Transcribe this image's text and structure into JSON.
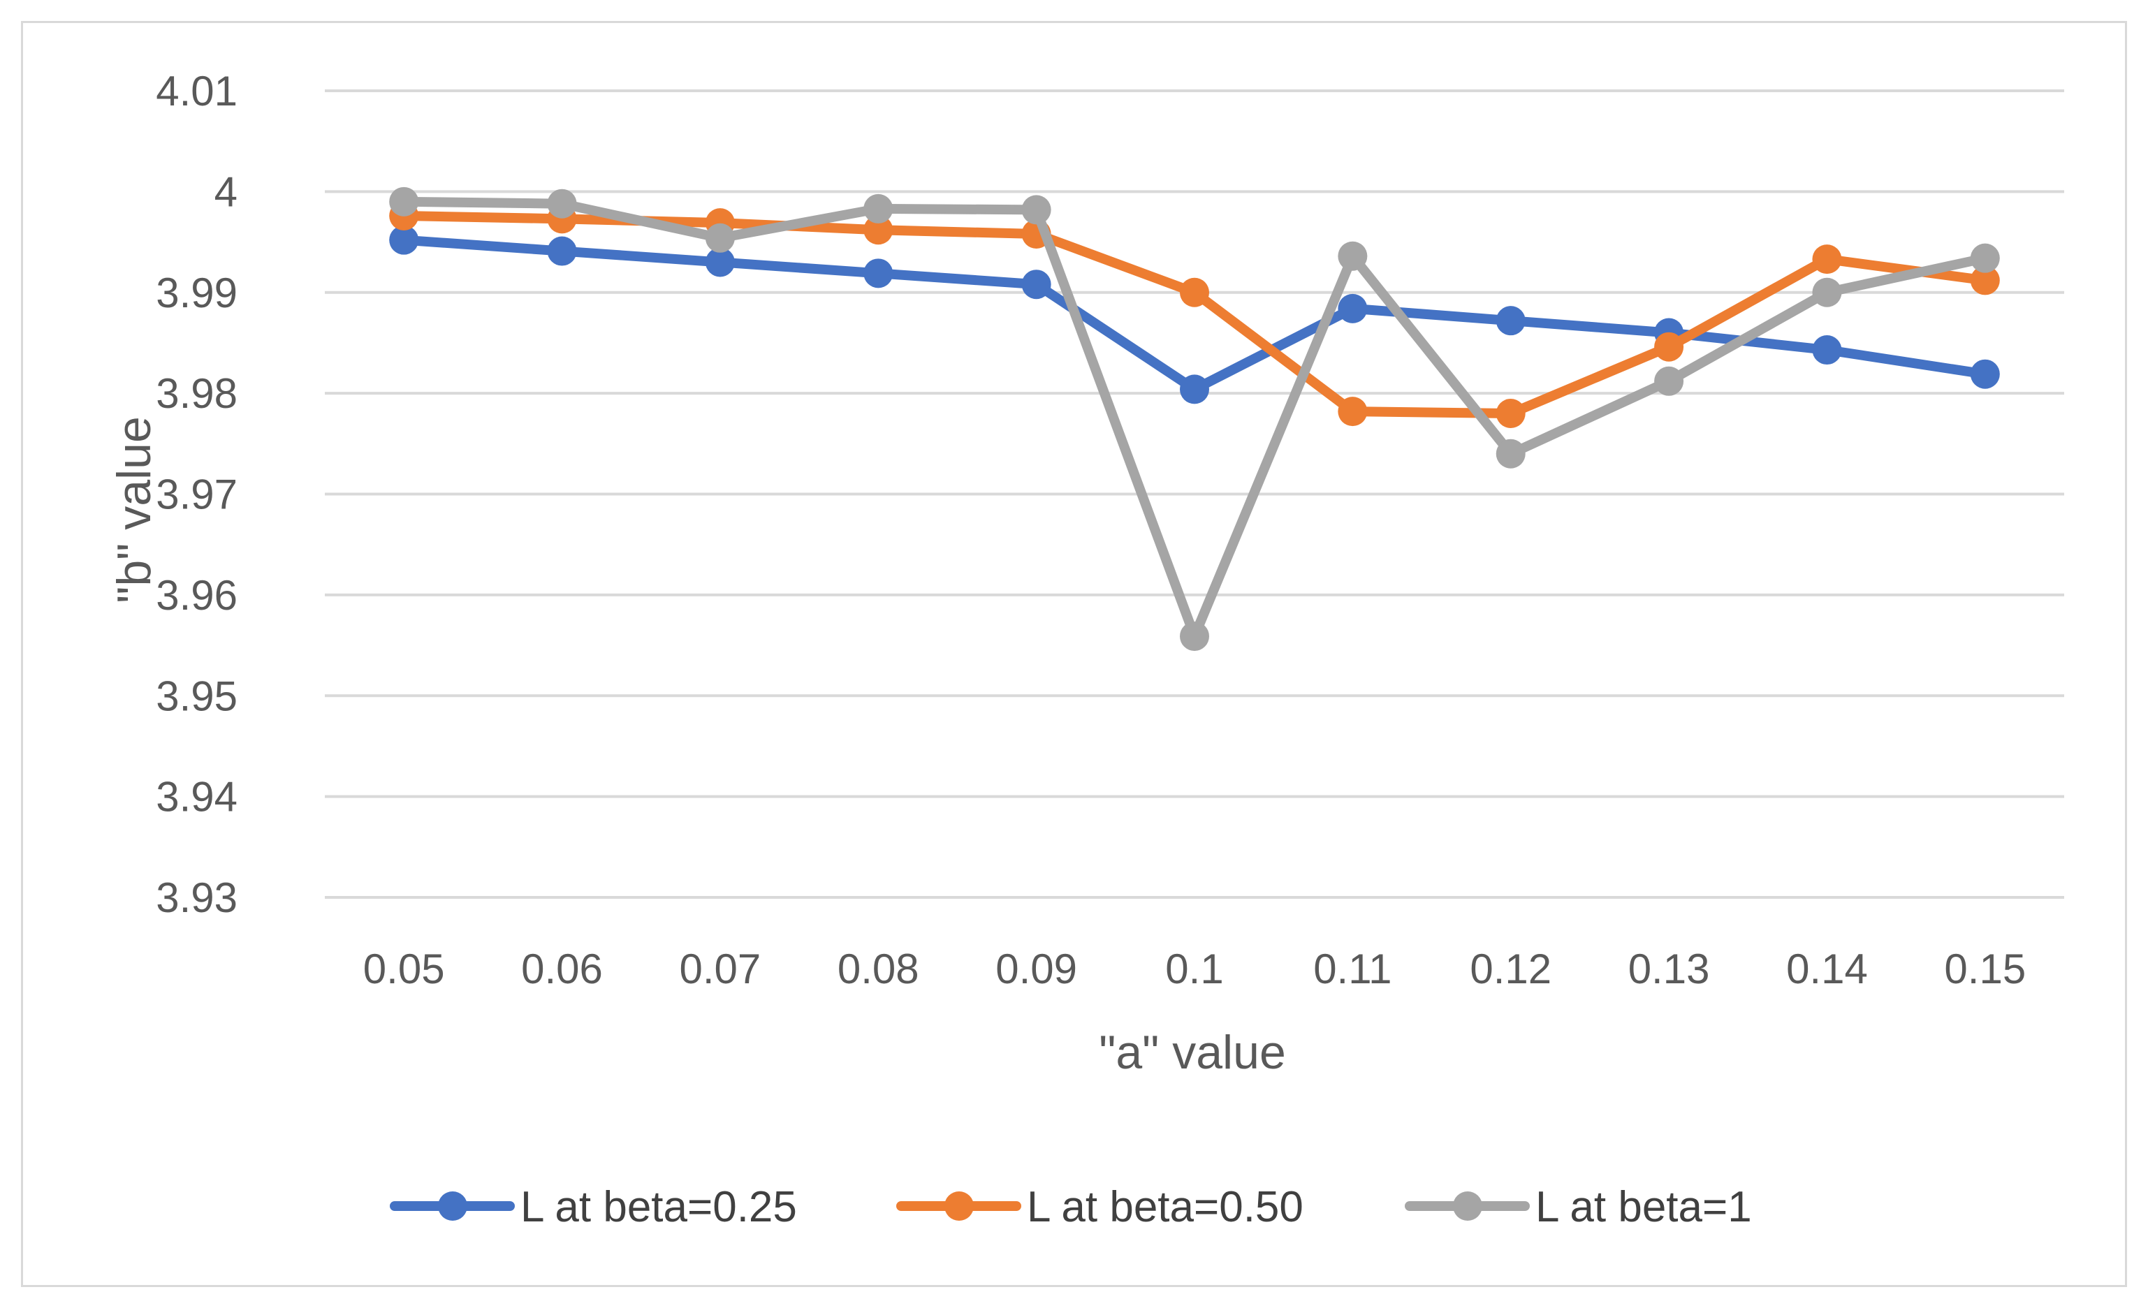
{
  "chart_data": {
    "type": "line",
    "title": "",
    "xlabel": "\"a\" value",
    "ylabel": "\"b\" value",
    "categories": [
      "0.05",
      "0.06",
      "0.07",
      "0.08",
      "0.09",
      "0.1",
      "0.11",
      "0.12",
      "0.13",
      "0.14",
      "0.15"
    ],
    "ylim": [
      3.93,
      4.01
    ],
    "yticks": [
      "3.93",
      "3.94",
      "3.95",
      "3.96",
      "3.97",
      "3.98",
      "3.99",
      "4",
      "4.01"
    ],
    "grid": true,
    "legend_position": "bottom",
    "series": [
      {
        "name": "L at beta=0.25",
        "color": "#4472c4",
        "values": [
          3.9952,
          3.9941,
          3.993,
          3.9919,
          3.9908,
          3.9804,
          3.9884,
          3.9872,
          3.986,
          3.9843,
          3.9819
        ]
      },
      {
        "name": "L at beta=0.50",
        "color": "#ed7d31",
        "values": [
          3.9976,
          3.9973,
          3.9969,
          3.9962,
          3.9958,
          3.99,
          3.9782,
          3.978,
          3.9846,
          3.9933,
          3.9912
        ]
      },
      {
        "name": "L at beta=1",
        "color": "#a5a5a5",
        "values": [
          3.999,
          3.9988,
          3.9954,
          3.9983,
          3.9982,
          3.9559,
          3.9936,
          3.974,
          3.9812,
          3.99,
          3.9934
        ]
      }
    ]
  }
}
